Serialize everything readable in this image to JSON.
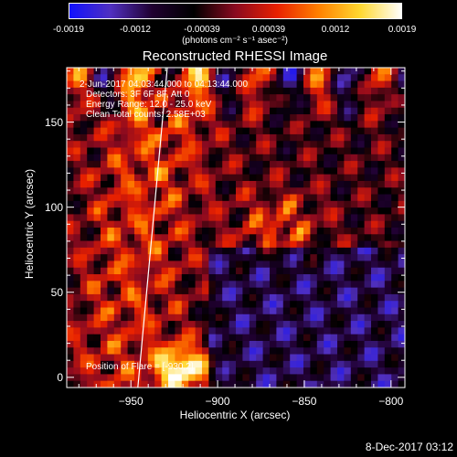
{
  "colorbar": {
    "ticks": [
      "-0.0019",
      "-0.0012",
      "-0.00039",
      "0.00039",
      "0.0012",
      "0.0019"
    ],
    "unit": "(photons cm⁻² s⁻¹ asec⁻²)",
    "colors": [
      "#1010ff",
      "#5030c0",
      "#200030",
      "#000000",
      "#8a0a20",
      "#e82000",
      "#ff8000",
      "#ffd830",
      "#ffffff"
    ]
  },
  "chart_data": {
    "type": "heatmap",
    "title": "Reconstructed RHESSI Image",
    "xlabel": "Heliocentric X (arcsec)",
    "ylabel": "Heliocentric Y (arcsec)",
    "xlim": [
      -987,
      -792
    ],
    "ylim": [
      -6,
      182
    ],
    "xticks": [
      -950,
      -900,
      -850,
      -800
    ],
    "xtick_labels": [
      "−950",
      "−900",
      "−850",
      "−800"
    ],
    "yticks": [
      0,
      50,
      100,
      150
    ],
    "ytick_labels": [
      "0",
      "50",
      "100",
      "150"
    ],
    "value_range": [
      -0.0019,
      0.0019
    ],
    "limb_line": [
      [
        -946,
        -6
      ],
      [
        -929,
        182
      ]
    ],
    "annotations": [
      "2-Jun-2017 04:03:44.000 to 04:13:44.000",
      "Detectors: 3F 6F 8F, Att 0",
      "Energy Range: 12.0 - 25.0 keV",
      "Clean    Total counts: 2.58E+03",
      "Position of Flare = [-930,2]"
    ]
  },
  "footer": "8-Dec-2017 03:12"
}
